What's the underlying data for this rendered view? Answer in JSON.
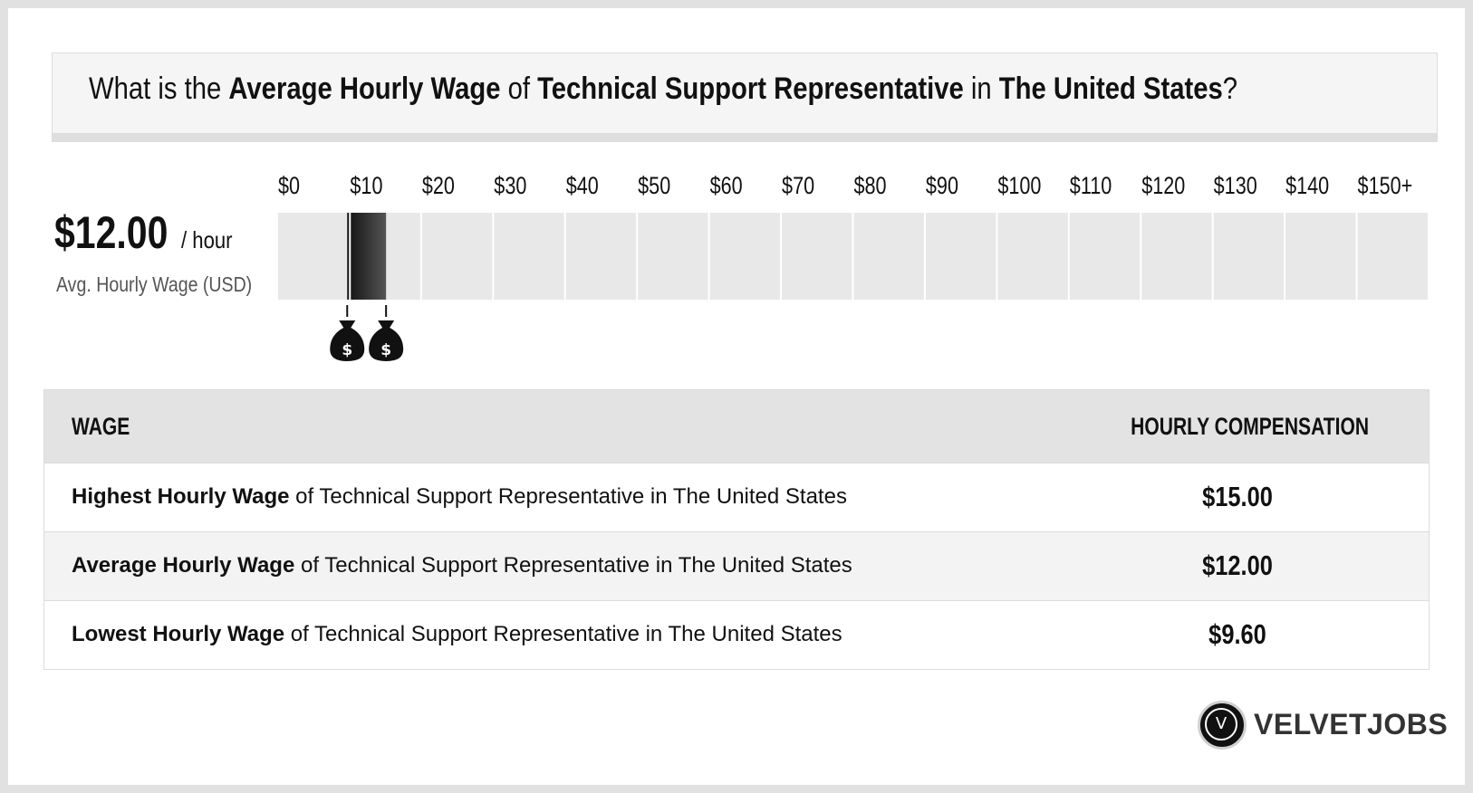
{
  "title": {
    "part1": "What is the ",
    "bold1": "Average Hourly Wage",
    "part2": " of ",
    "bold2": "Technical Support Representative",
    "part3": " in ",
    "bold3": "The United States",
    "part4": "?"
  },
  "average": {
    "value": "$12.00",
    "unit": "/ hour",
    "label": "Avg. Hourly Wage (USD)"
  },
  "chart_data": {
    "type": "bar",
    "x_tick_labels": [
      "$0",
      "$10",
      "$20",
      "$30",
      "$40",
      "$50",
      "$60",
      "$70",
      "$80",
      "$90",
      "$100",
      "$110",
      "$120",
      "$130",
      "$140",
      "$150+"
    ],
    "xlim": [
      0,
      150
    ],
    "range": {
      "low": 9.6,
      "high": 15.0
    },
    "average": 12.0,
    "markers": [
      {
        "value": 9.6,
        "icon": "money-bag-icon",
        "glyph": "$"
      },
      {
        "value": 15.0,
        "icon": "money-bag-icon",
        "glyph": "$"
      }
    ],
    "colors": {
      "track": "#e8e8e8",
      "bar_start": "#111111",
      "bar_end": "#555555"
    }
  },
  "table": {
    "header_wage": "WAGE",
    "header_comp": "HOURLY COMPENSATION",
    "rows": [
      {
        "bold": "Highest Hourly Wage",
        "rest": " of Technical Support Representative in The United States",
        "value": "$15.00"
      },
      {
        "bold": "Average Hourly Wage",
        "rest": " of Technical Support Representative in The United States",
        "value": "$12.00"
      },
      {
        "bold": "Lowest Hourly Wage",
        "rest": " of Technical Support Representative in The United States",
        "value": "$9.60"
      }
    ]
  },
  "brand": {
    "logo_letter": "V",
    "name": "VELVETJOBS"
  }
}
